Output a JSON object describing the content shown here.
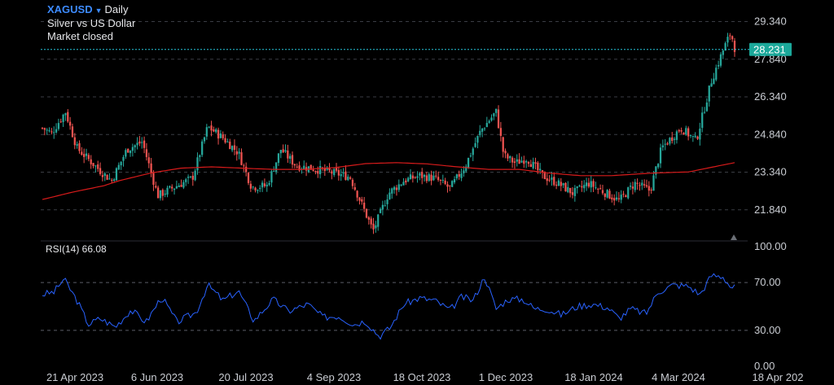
{
  "header": {
    "symbol": "XAGUSD",
    "timeframe": "Daily",
    "description": "Silver vs US Dollar",
    "status": "Market closed"
  },
  "colors": {
    "up": "#26a69a",
    "down": "#ef5350",
    "ma": "#d81b1b",
    "rsi": "#2962ff",
    "grid": "#3a3d44",
    "price_line": "#26c6da",
    "price_tag": "#1ba89a",
    "axis_text": "#c9ccd2"
  },
  "rsi_legend": "RSI(14) 66.08",
  "price_axis": {
    "ticks": [
      "29.340",
      "27.840",
      "26.340",
      "24.840",
      "23.340",
      "21.840"
    ],
    "current": "28.231"
  },
  "rsi_axis": {
    "ticks": [
      "100.00",
      "70.00",
      "30.00",
      "0.00"
    ]
  },
  "time_axis": [
    "21 Apr 2023",
    "6 Jun 2023",
    "20 Jul 2023",
    "4 Sep 2023",
    "18 Oct 2023",
    "1 Dec 2023",
    "18 Jan 2024",
    "4 Mar 2024",
    "18 Apr 202"
  ],
  "chart_data": [
    {
      "type": "candlestick",
      "title": "XAGUSD Daily",
      "ylim": [
        20.6,
        30.2
      ],
      "ma_line": [
        [
          0,
          22.25
        ],
        [
          40,
          22.55
        ],
        [
          80,
          22.8
        ],
        [
          100,
          23.0
        ],
        [
          140,
          23.3
        ],
        [
          180,
          23.5
        ],
        [
          220,
          23.55
        ],
        [
          260,
          23.5
        ],
        [
          300,
          23.45
        ],
        [
          340,
          23.45
        ],
        [
          380,
          23.52
        ],
        [
          420,
          23.68
        ],
        [
          460,
          23.72
        ],
        [
          500,
          23.67
        ],
        [
          540,
          23.55
        ],
        [
          580,
          23.45
        ],
        [
          620,
          23.45
        ],
        [
          660,
          23.3
        ],
        [
          700,
          23.2
        ],
        [
          740,
          23.2
        ],
        [
          790,
          23.3
        ],
        [
          840,
          23.35
        ],
        [
          900,
          23.72
        ]
      ],
      "anchors": [
        [
          0,
          25.1
        ],
        [
          12,
          24.9
        ],
        [
          30,
          25.75
        ],
        [
          45,
          24.3
        ],
        [
          75,
          23.4
        ],
        [
          90,
          23.0
        ],
        [
          110,
          24.25
        ],
        [
          130,
          24.55
        ],
        [
          150,
          22.4
        ],
        [
          175,
          22.8
        ],
        [
          195,
          23.1
        ],
        [
          215,
          25.15
        ],
        [
          235,
          24.7
        ],
        [
          255,
          24.1
        ],
        [
          272,
          22.75
        ],
        [
          292,
          22.8
        ],
        [
          310,
          24.25
        ],
        [
          330,
          23.6
        ],
        [
          350,
          23.5
        ],
        [
          380,
          23.3
        ],
        [
          400,
          23.15
        ],
        [
          430,
          21.0
        ],
        [
          450,
          22.5
        ],
        [
          470,
          23.0
        ],
        [
          490,
          23.2
        ],
        [
          510,
          23.1
        ],
        [
          530,
          22.7
        ],
        [
          550,
          23.6
        ],
        [
          570,
          25.0
        ],
        [
          590,
          25.75
        ],
        [
          600,
          24.0
        ],
        [
          615,
          23.7
        ],
        [
          630,
          23.9
        ],
        [
          650,
          23.2
        ],
        [
          670,
          22.9
        ],
        [
          690,
          22.5
        ],
        [
          710,
          22.9
        ],
        [
          730,
          22.55
        ],
        [
          750,
          22.2
        ],
        [
          770,
          22.9
        ],
        [
          790,
          22.6
        ],
        [
          805,
          24.3
        ],
        [
          830,
          25.1
        ],
        [
          850,
          24.6
        ],
        [
          870,
          27.0
        ],
        [
          885,
          28.2
        ],
        [
          895,
          28.9
        ],
        [
          900,
          28.3
        ]
      ],
      "x_labels": [
        "21 Apr 2023",
        "6 Jun 2023",
        "20 Jul 2023",
        "4 Sep 2023",
        "18 Oct 2023",
        "1 Dec 2023",
        "18 Jan 2024",
        "4 Mar 2024",
        "18 Apr 202"
      ],
      "last": 28.231
    },
    {
      "type": "line",
      "title": "RSI(14)",
      "ylim": [
        0,
        100
      ],
      "levels": [
        70,
        30
      ],
      "values": [
        [
          0,
          60
        ],
        [
          15,
          62
        ],
        [
          28,
          73
        ],
        [
          45,
          55
        ],
        [
          60,
          35
        ],
        [
          75,
          40
        ],
        [
          95,
          33
        ],
        [
          115,
          47
        ],
        [
          135,
          37
        ],
        [
          155,
          58
        ],
        [
          175,
          37
        ],
        [
          200,
          45
        ],
        [
          215,
          68
        ],
        [
          235,
          55
        ],
        [
          255,
          63
        ],
        [
          275,
          38
        ],
        [
          300,
          56
        ],
        [
          320,
          46
        ],
        [
          345,
          52
        ],
        [
          365,
          41
        ],
        [
          385,
          42
        ],
        [
          405,
          35
        ],
        [
          420,
          38
        ],
        [
          438,
          25
        ],
        [
          452,
          32
        ],
        [
          470,
          52
        ],
        [
          490,
          57
        ],
        [
          510,
          55
        ],
        [
          530,
          47
        ],
        [
          545,
          58
        ],
        [
          560,
          55
        ],
        [
          575,
          75
        ],
        [
          590,
          48
        ],
        [
          605,
          56
        ],
        [
          625,
          56
        ],
        [
          640,
          48
        ],
        [
          655,
          48
        ],
        [
          675,
          43
        ],
        [
          695,
          50
        ],
        [
          715,
          52
        ],
        [
          735,
          49
        ],
        [
          750,
          40
        ],
        [
          765,
          48
        ],
        [
          785,
          44
        ],
        [
          800,
          62
        ],
        [
          820,
          68
        ],
        [
          840,
          67
        ],
        [
          855,
          60
        ],
        [
          870,
          76
        ],
        [
          885,
          75
        ],
        [
          895,
          66
        ],
        [
          900,
          66
        ]
      ]
    }
  ]
}
